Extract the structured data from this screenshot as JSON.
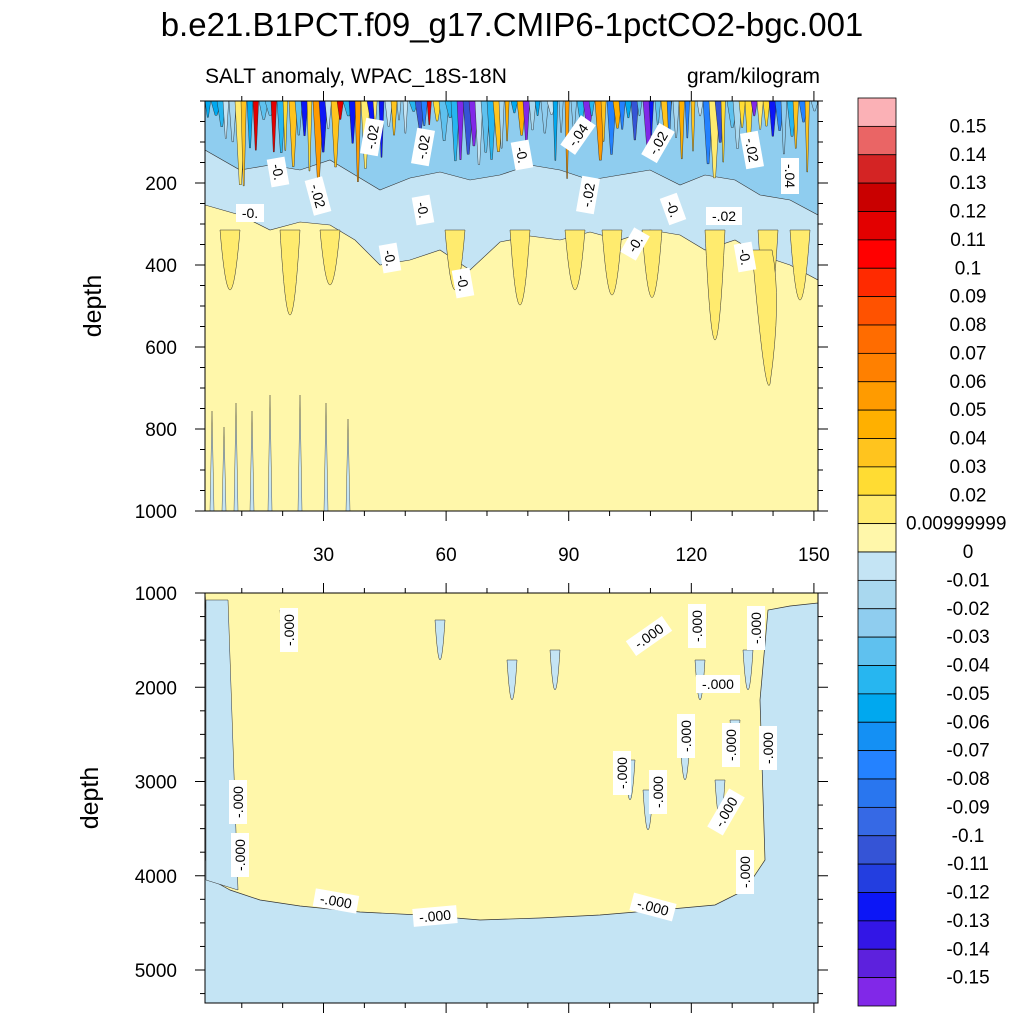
{
  "chart_data": {
    "type": "heatmap",
    "title": "b.e21.B1PCT.f09_g17.CMIP6-1pctCO2-bgc.001",
    "subtitle_left": "SALT anomaly, WPAC_18S-18N",
    "subtitle_right": "gram/kilogram",
    "panels": [
      {
        "name": "upper-panel",
        "ylabel": "depth",
        "xlim": [
          1,
          151
        ],
        "ylim": [
          0,
          1000
        ],
        "x_ticks": [
          "30",
          "60",
          "90",
          "120",
          "150"
        ],
        "y_ticks": [
          "200",
          "400",
          "600",
          "800",
          "1000"
        ],
        "contour_labels": [
          "-.02",
          "-.02",
          "-.04",
          "-.02",
          "-.02",
          "-0.",
          "-0.",
          "-.02",
          "-0.",
          "-.02",
          "-.04",
          "-0.",
          "-0.",
          "-.02",
          "-0.",
          "-0.",
          "-0.",
          "-0."
        ]
      },
      {
        "name": "lower-panel",
        "ylabel": "depth",
        "xlim": [
          1,
          151
        ],
        "ylim": [
          1000,
          5350
        ],
        "x_ticks": [],
        "y_ticks": [
          "1000",
          "2000",
          "3000",
          "4000",
          "5000"
        ],
        "contour_labels": [
          "-.000",
          "-.000",
          "-.000",
          "-.000",
          "-.000",
          "-.000",
          "-.000",
          "-.000",
          "-.000",
          "-.000",
          "-.000",
          "-.000",
          "-.000",
          "-.000",
          "-.000",
          "-.000"
        ]
      }
    ],
    "colorbar": {
      "levels": [
        "0.15",
        "0.14",
        "0.13",
        "0.12",
        "0.11",
        "0.1",
        "0.09",
        "0.08",
        "0.07",
        "0.06",
        "0.05",
        "0.04",
        "0.03",
        "0.02",
        "0.00999999",
        "0",
        "-0.01",
        "-0.02",
        "-0.03",
        "-0.04",
        "-0.05",
        "-0.06",
        "-0.07",
        "-0.08",
        "-0.09",
        "-0.1",
        "-0.11",
        "-0.12",
        "-0.13",
        "-0.14",
        "-0.15"
      ],
      "colors": [
        "#fbb1b6",
        "#ea6565",
        "#d42424",
        "#c90000",
        "#e30000",
        "#ff0000",
        "#ff2a00",
        "#ff5200",
        "#ff6c00",
        "#ff8000",
        "#ff9b00",
        "#ffb000",
        "#ffc41e",
        "#ffdc33",
        "#ffeb6e",
        "#fff7aa",
        "#c4e4f4",
        "#a9d8ef",
        "#8fcdef",
        "#5fc1ef",
        "#27b6f0",
        "#00a8ef",
        "#1490f4",
        "#2482ff",
        "#2976ef",
        "#3669e5",
        "#3554d6",
        "#233ee0",
        "#0c16f6",
        "#3316e6",
        "#5d21dd",
        "#8128e8"
      ]
    }
  }
}
